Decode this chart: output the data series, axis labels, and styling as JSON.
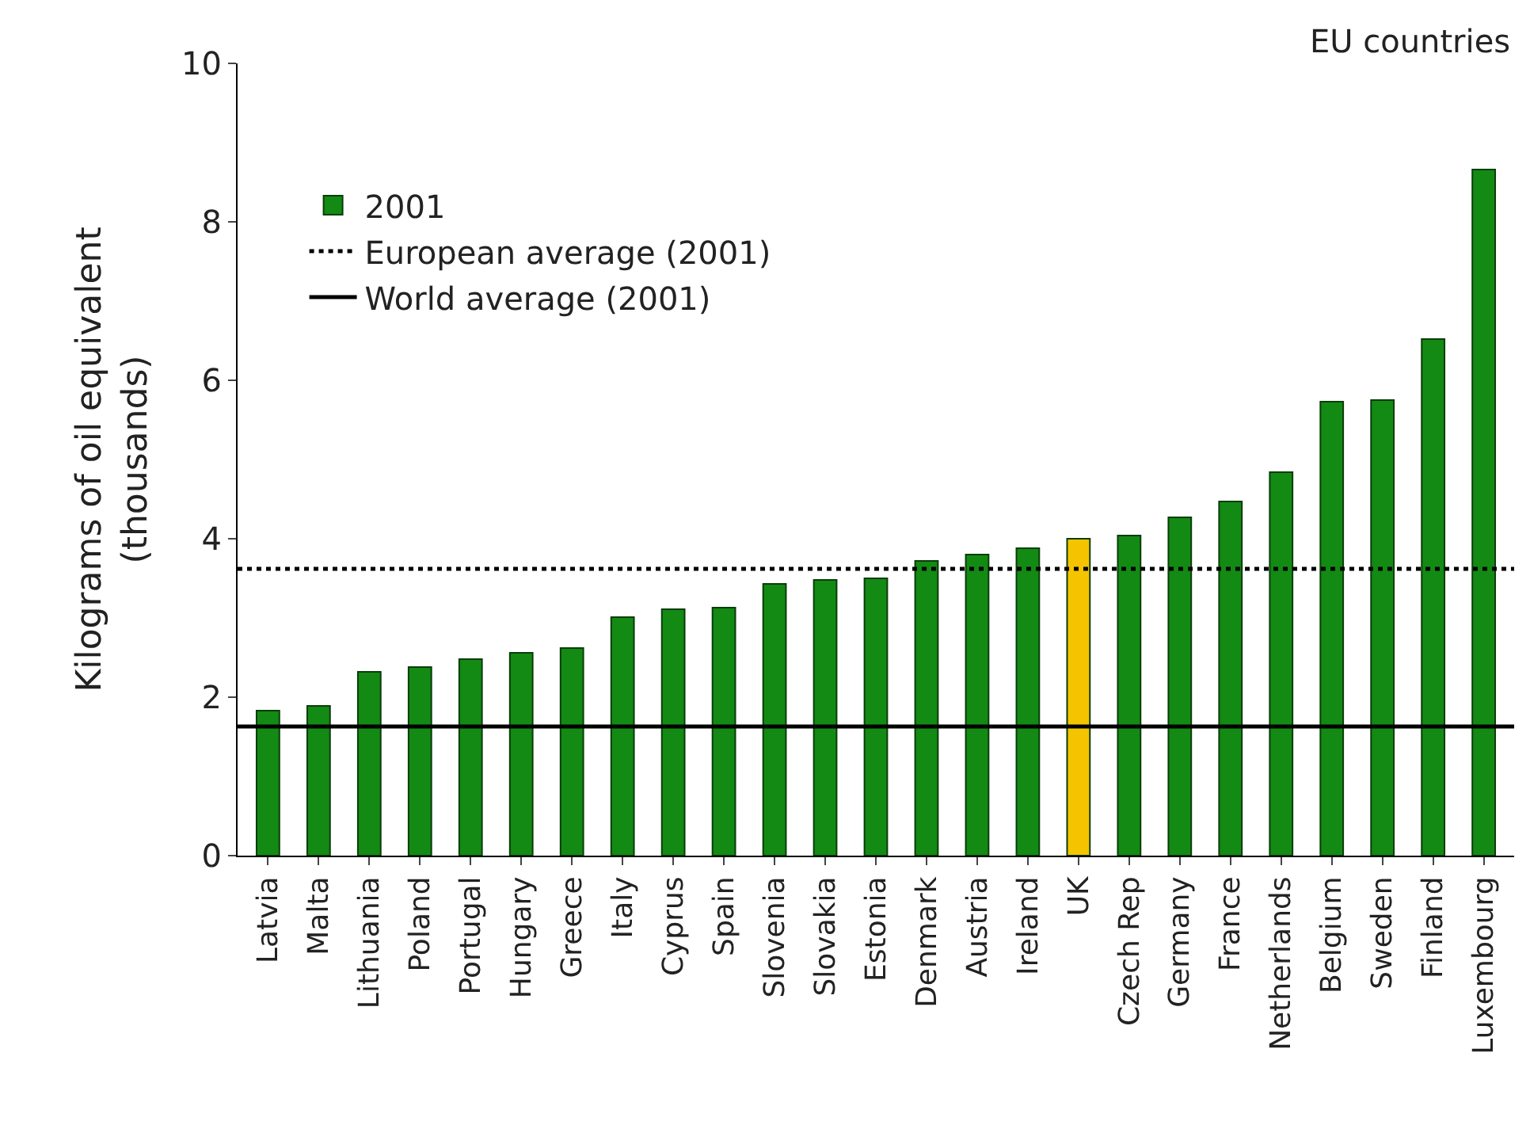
{
  "chart_data": {
    "type": "bar",
    "ylabel": "Kilograms of oil equivalent\n(thousands)",
    "annotations": [
      "EU countries"
    ],
    "categories": [
      "Latvia",
      "Malta",
      "Lithuania",
      "Poland",
      "Portugal",
      "Hungary",
      "Greece",
      "Italy",
      "Cyprus",
      "Spain",
      "Slovenia",
      "Slovakia",
      "Estonia",
      "Denmark",
      "Austria",
      "Ireland",
      "UK",
      "Czech Rep",
      "Germany",
      "France",
      "Netherlands",
      "Belgium",
      "Sweden",
      "Finland",
      "Luxembourg"
    ],
    "series": [
      {
        "name": "2001",
        "colors": [
          "#138a13",
          "#138a13",
          "#138a13",
          "#138a13",
          "#138a13",
          "#138a13",
          "#138a13",
          "#138a13",
          "#138a13",
          "#138a13",
          "#138a13",
          "#138a13",
          "#138a13",
          "#138a13",
          "#138a13",
          "#138a13",
          "#f5c400",
          "#138a13",
          "#138a13",
          "#138a13",
          "#138a13",
          "#138a13",
          "#138a13",
          "#138a13",
          "#138a13"
        ],
        "values": [
          1.83,
          1.89,
          2.32,
          2.38,
          2.48,
          2.56,
          2.62,
          3.01,
          3.11,
          3.13,
          3.43,
          3.48,
          3.5,
          3.72,
          3.8,
          3.88,
          4.0,
          4.04,
          4.27,
          4.47,
          4.84,
          5.73,
          5.75,
          6.52,
          8.66
        ]
      }
    ],
    "ref_lines": [
      {
        "axis": "y",
        "value": 3.62,
        "label": "European average (2001)",
        "line_style": "dotted",
        "color": "#000000"
      },
      {
        "axis": "y",
        "value": 1.63,
        "label": "World average (2001)",
        "line_style": "solid",
        "color": "#000000"
      }
    ],
    "ylim": [
      0,
      10
    ],
    "yticks": [
      0,
      2,
      4,
      6,
      8,
      10
    ],
    "legend": "top left"
  }
}
